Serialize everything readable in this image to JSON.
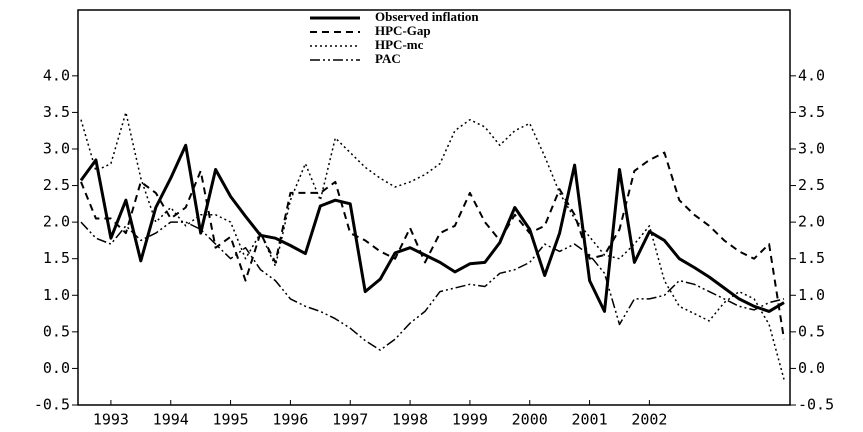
{
  "chart_data": {
    "type": "line",
    "x": [
      1993,
      1993.25,
      1993.5,
      1993.75,
      1994,
      1994.25,
      1994.5,
      1994.75,
      1995,
      1995.25,
      1995.5,
      1995.75,
      1996,
      1996.25,
      1996.5,
      1996.75,
      1997,
      1997.25,
      1997.5,
      1997.75,
      1998,
      1998.25,
      1998.5,
      1998.75,
      1999,
      1999.25,
      1999.5,
      1999.75,
      2000,
      2000.25,
      2000.5,
      2000.75,
      2001,
      2001.25,
      2001.5,
      2001.75,
      2002,
      2002.25,
      2002.5,
      2002.75,
      2003,
      2003.25,
      2003.5,
      2003.75,
      2004,
      2004.25,
      2004.5,
      2004.75
    ],
    "series": [
      {
        "name": "Observed inflation",
        "color": "#000000",
        "dash": "none",
        "width": 3,
        "values": [
          2.57,
          2.85,
          1.78,
          2.3,
          1.47,
          2.2,
          2.6,
          3.05,
          1.85,
          2.72,
          2.35,
          2.08,
          1.82,
          1.78,
          1.68,
          1.57,
          2.22,
          2.3,
          2.25,
          1.05,
          1.22,
          1.58,
          1.65,
          1.55,
          1.45,
          1.32,
          1.43,
          1.45,
          1.72,
          2.2,
          1.9,
          1.27,
          1.85,
          2.78,
          1.2,
          0.78,
          2.72,
          1.45,
          1.87,
          1.75,
          1.5,
          1.38,
          1.25,
          1.1,
          0.95,
          0.85,
          0.78,
          0.9
        ]
      },
      {
        "name": "HPC-Gap",
        "color": "#000000",
        "dash": "7 5",
        "width": 2,
        "values": [
          2.55,
          2.05,
          2.05,
          1.85,
          2.55,
          2.4,
          2.05,
          2.2,
          2.7,
          1.65,
          1.8,
          1.2,
          1.85,
          1.45,
          2.4,
          2.4,
          2.4,
          2.55,
          1.85,
          1.75,
          1.6,
          1.5,
          1.92,
          1.45,
          1.85,
          1.95,
          2.4,
          2.0,
          1.75,
          2.1,
          1.85,
          1.95,
          2.45,
          2.1,
          1.5,
          1.55,
          1.9,
          2.7,
          2.85,
          2.95,
          2.3,
          2.1,
          1.95,
          1.75,
          1.6,
          1.5,
          1.7,
          0.4
        ]
      },
      {
        "name": "HPC-mc",
        "color": "#000000",
        "dash": "2 3",
        "width": 1.5,
        "values": [
          3.4,
          2.7,
          2.8,
          3.5,
          2.6,
          2.0,
          2.2,
          1.95,
          2.1,
          2.1,
          2.0,
          1.5,
          1.85,
          1.4,
          2.3,
          2.8,
          2.3,
          3.15,
          2.95,
          2.75,
          2.6,
          2.48,
          2.55,
          2.65,
          2.8,
          3.25,
          3.4,
          3.3,
          3.05,
          3.25,
          3.35,
          2.9,
          2.4,
          2.05,
          1.8,
          1.55,
          1.5,
          1.7,
          1.95,
          1.2,
          0.85,
          0.75,
          0.65,
          0.9,
          1.05,
          0.95,
          0.6,
          -0.15
        ]
      },
      {
        "name": "PAC",
        "color": "#000000",
        "dash": "10 3 2 3 2 3",
        "width": 1.5,
        "values": [
          2.0,
          1.78,
          1.7,
          1.95,
          1.75,
          1.85,
          2.0,
          2.0,
          1.9,
          1.7,
          1.5,
          1.65,
          1.35,
          1.2,
          0.95,
          0.85,
          0.78,
          0.68,
          0.55,
          0.38,
          0.25,
          0.4,
          0.62,
          0.78,
          1.05,
          1.1,
          1.15,
          1.12,
          1.3,
          1.35,
          1.45,
          1.7,
          1.6,
          1.7,
          1.55,
          1.3,
          0.6,
          0.95,
          0.95,
          1.0,
          1.2,
          1.15,
          1.05,
          0.95,
          0.85,
          0.8,
          0.9,
          0.95
        ]
      }
    ],
    "xlim": [
      1992.95,
      2004.85
    ],
    "xticks": [
      {
        "value": 1993.5,
        "label": "1993"
      },
      {
        "value": 1994.5,
        "label": "1994"
      },
      {
        "value": 1995.5,
        "label": "1995"
      },
      {
        "value": 1996.5,
        "label": "1996"
      },
      {
        "value": 1997.5,
        "label": "1997"
      },
      {
        "value": 1998.5,
        "label": "1998"
      },
      {
        "value": 1999.5,
        "label": "1999"
      },
      {
        "value": 2000.5,
        "label": "2000"
      },
      {
        "value": 2001.5,
        "label": "2001"
      },
      {
        "value": 2002.5,
        "label": "2002"
      }
    ],
    "ylim": [
      -0.5,
      4.9
    ],
    "yticks": [
      {
        "value": -0.5,
        "label": "-0.5"
      },
      {
        "value": 0,
        "label": "0.0"
      },
      {
        "value": 0.5,
        "label": "0.5"
      },
      {
        "value": 1,
        "label": "1.0"
      },
      {
        "value": 1.5,
        "label": "1.5"
      },
      {
        "value": 2,
        "label": "2.0"
      },
      {
        "value": 2.5,
        "label": "2.5"
      },
      {
        "value": 3,
        "label": "3.0"
      },
      {
        "value": 3.5,
        "label": "3.5"
      },
      {
        "value": 4,
        "label": "4.0"
      }
    ],
    "legend": "top"
  }
}
